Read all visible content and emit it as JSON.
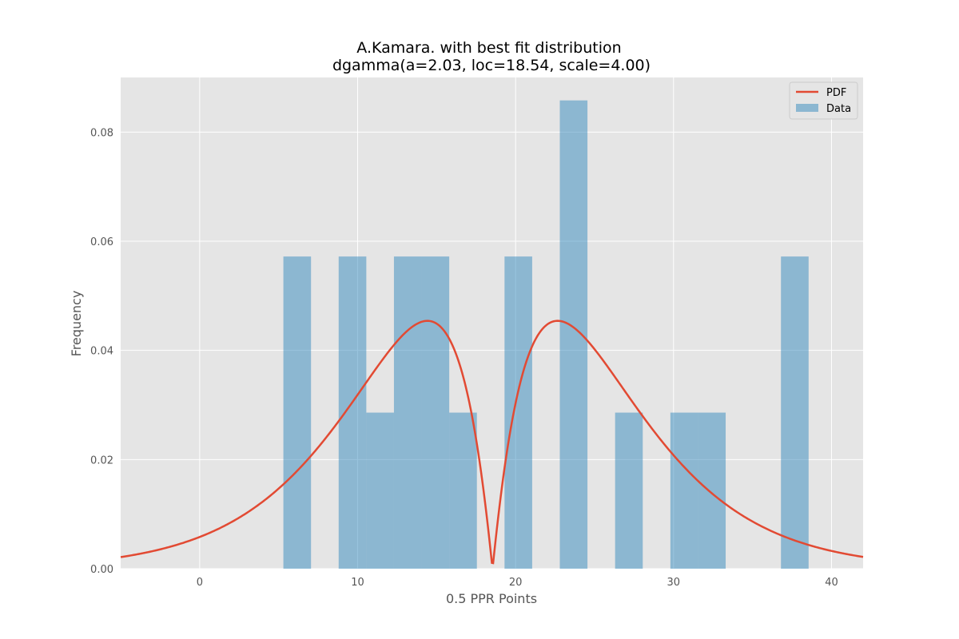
{
  "chart_data": {
    "type": "bar",
    "title_line1": "A.Kamara. with best fit distribution",
    "title_line2": "dgamma(a=2.03, loc=18.54, scale=4.00)",
    "xlabel": "0.5 PPR Points",
    "ylabel": "Frequency",
    "xlim": [
      -5,
      42
    ],
    "ylim": [
      0,
      0.09
    ],
    "xticks": [
      0,
      10,
      20,
      30,
      40
    ],
    "yticks": [
      0.0,
      0.02,
      0.04,
      0.06,
      0.08
    ],
    "xtick_labels": [
      "0",
      "10",
      "20",
      "30",
      "40"
    ],
    "ytick_labels": [
      "0.00",
      "0.02",
      "0.04",
      "0.06",
      "0.08"
    ],
    "grid": true,
    "legend_position": "top-right",
    "legend": [
      {
        "label": "PDF",
        "kind": "line"
      },
      {
        "label": "Data",
        "kind": "patch"
      }
    ],
    "histogram": {
      "name": "Data",
      "color": "#348abd",
      "bins": [
        {
          "x0": 5.3,
          "x1": 7.05,
          "value": 0.0572
        },
        {
          "x0": 8.8,
          "x1": 10.55,
          "value": 0.0572
        },
        {
          "x0": 10.55,
          "x1": 12.3,
          "value": 0.0286
        },
        {
          "x0": 12.3,
          "x1": 14.05,
          "value": 0.0572
        },
        {
          "x0": 14.05,
          "x1": 15.8,
          "value": 0.0572
        },
        {
          "x0": 15.8,
          "x1": 17.55,
          "value": 0.0286
        },
        {
          "x0": 19.3,
          "x1": 21.05,
          "value": 0.0572
        },
        {
          "x0": 22.8,
          "x1": 24.55,
          "value": 0.0858
        },
        {
          "x0": 26.3,
          "x1": 28.05,
          "value": 0.0286
        },
        {
          "x0": 29.8,
          "x1": 31.55,
          "value": 0.0286
        },
        {
          "x0": 31.55,
          "x1": 33.3,
          "value": 0.0286
        },
        {
          "x0": 36.8,
          "x1": 38.55,
          "value": 0.0572
        }
      ]
    },
    "pdf": {
      "name": "PDF",
      "color": "#e24a33",
      "distribution": "dgamma",
      "a": 2.03,
      "loc": 18.54,
      "scale": 4.0
    },
    "colors": {
      "plot_background": "#e5e5e5",
      "grid": "#ffffff"
    }
  }
}
